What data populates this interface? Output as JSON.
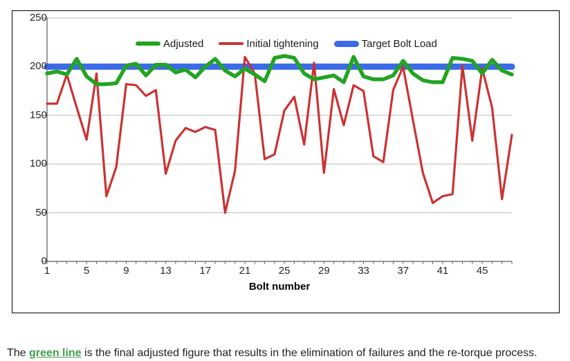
{
  "legend": {
    "items": [
      {
        "label": "Adjusted",
        "color": "#22A422",
        "thickness": 6
      },
      {
        "label": "Initial tightening",
        "color": "#CC3232",
        "thickness": 3.5
      },
      {
        "label": "Target Bolt Load",
        "color": "#3C6BE8",
        "thickness": 9
      }
    ]
  },
  "axes": {
    "y_tick_labels": [
      "250",
      "200",
      "150",
      "100",
      "50",
      "0"
    ],
    "y_tick_values": [
      250,
      200,
      150,
      100,
      50,
      0
    ],
    "x_tick_labels": [
      "1",
      "5",
      "9",
      "13",
      "17",
      "21",
      "25",
      "29",
      "33",
      "37",
      "41",
      "45"
    ],
    "x_tick_bolts": [
      1,
      5,
      9,
      13,
      17,
      21,
      25,
      29,
      33,
      37,
      41,
      45
    ],
    "x_title": "Bolt number"
  },
  "caption": {
    "prefix": "The ",
    "highlight": "green line",
    "suffix": " is the final adjusted figure that results in the elimination of failures and the re-torque process.",
    "highlight_color": "#3F9F4C"
  },
  "chart_data": {
    "type": "line",
    "title": "",
    "xlabel": "Bolt number",
    "ylabel": "",
    "ylim": [
      0,
      250
    ],
    "y_tick_step": 50,
    "grid": true,
    "legend_position": "top-center",
    "n_points": 48,
    "x_start": 1,
    "x_end": 48,
    "series": [
      {
        "name": "Adjusted",
        "color": "#22A422",
        "width": 5.5,
        "dataname": "adjusted-line",
        "values": [
          193,
          195,
          192,
          208,
          190,
          182,
          182,
          183,
          201,
          203,
          191,
          202,
          202,
          194,
          197,
          189,
          200,
          208,
          196,
          190,
          198,
          192,
          185,
          209,
          211,
          209,
          193,
          187,
          189,
          191,
          184,
          210,
          190,
          187,
          187,
          191,
          206,
          193,
          186,
          184,
          184,
          209,
          208,
          206,
          193,
          207,
          196,
          192
        ]
      },
      {
        "name": "Initial tightening",
        "color": "#CC3232",
        "width": 3.2,
        "dataname": "initial-tightening-line",
        "values": [
          162,
          162,
          192,
          158,
          125,
          193,
          67,
          97,
          182,
          181,
          170,
          176,
          90,
          124,
          137,
          133,
          138,
          135,
          50,
          93,
          210,
          193,
          105,
          110,
          155,
          169,
          120,
          204,
          91,
          177,
          140,
          181,
          175,
          108,
          102,
          176,
          200,
          145,
          91,
          60,
          67,
          69,
          201,
          124,
          198,
          158,
          64,
          130
        ]
      },
      {
        "name": "Target Bolt Load",
        "color": "#3C6BE8",
        "width": 9,
        "dataname": "target-bolt-load-line",
        "values": [
          200,
          200,
          200,
          200,
          200,
          200,
          200,
          200,
          200,
          200,
          200,
          200,
          200,
          200,
          200,
          200,
          200,
          200,
          200,
          200,
          200,
          200,
          200,
          200,
          200,
          200,
          200,
          200,
          200,
          200,
          200,
          200,
          200,
          200,
          200,
          200,
          200,
          200,
          200,
          200,
          200,
          200,
          200,
          200,
          200,
          200,
          200,
          200
        ]
      }
    ]
  }
}
